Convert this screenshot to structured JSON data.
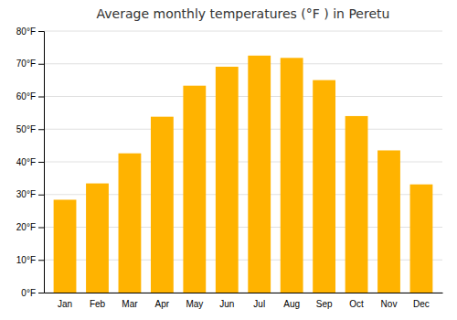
{
  "chart_data": {
    "type": "bar",
    "title": "Average monthly temperatures (°F ) in Peretu",
    "categories": [
      "Jan",
      "Feb",
      "Mar",
      "Apr",
      "May",
      "Jun",
      "Jul",
      "Aug",
      "Sep",
      "Oct",
      "Nov",
      "Dec"
    ],
    "values": [
      28.4,
      33.4,
      42.6,
      53.8,
      63.3,
      69.1,
      72.5,
      71.8,
      65.0,
      54.0,
      43.5,
      33.1
    ],
    "color": "#FFB300",
    "ylim": [
      0,
      80
    ],
    "yticks": [
      {
        "value": 0,
        "label": "0°F"
      },
      {
        "value": 10,
        "label": "10°F"
      },
      {
        "value": 20,
        "label": "20°F"
      },
      {
        "value": 30,
        "label": "30°F"
      },
      {
        "value": 40,
        "label": "40°F"
      },
      {
        "value": 50,
        "label": "50°F"
      },
      {
        "value": 60,
        "label": "60°F"
      },
      {
        "value": 70,
        "label": "70°F"
      },
      {
        "value": 80,
        "label": "80°F"
      }
    ],
    "grid": true
  }
}
